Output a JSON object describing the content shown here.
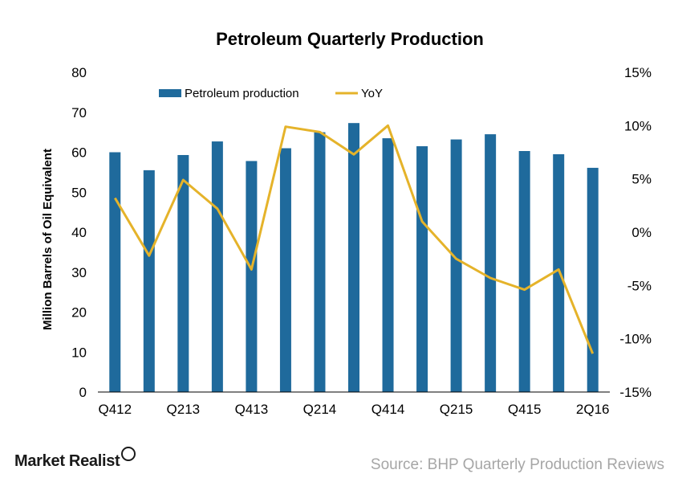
{
  "chart_data": {
    "type": "bar+line",
    "title": "Petroleum Quarterly Production",
    "ylabel": "Million Barrels of Oil Equivalent",
    "ylim": [
      0,
      80
    ],
    "y_ticks": [
      "0",
      "10",
      "20",
      "30",
      "40",
      "50",
      "60",
      "70",
      "80"
    ],
    "y2lim": [
      -15,
      15
    ],
    "y2_ticks": [
      "-15%",
      "-10%",
      "-5%",
      "0%",
      "5%",
      "10%",
      "15%"
    ],
    "x_tick_labels": [
      "Q412",
      "Q213",
      "Q413",
      "Q214",
      "Q414",
      "Q215",
      "Q415",
      "2Q16"
    ],
    "legend_position": "top",
    "grid": false,
    "series": [
      {
        "name": "Petroleum production",
        "kind": "bar",
        "axis": "left",
        "color": "#1f6a9c",
        "values": [
          60,
          55.5,
          59.3,
          62.7,
          57.8,
          61,
          65,
          67.3,
          63.5,
          61.5,
          63.2,
          64.5,
          60.3,
          59.5,
          56.1
        ]
      },
      {
        "name": "YoY",
        "kind": "line",
        "axis": "right",
        "color": "#e5b32a",
        "values": [
          3.2,
          -2.2,
          4.9,
          2.2,
          -3.5,
          9.9,
          9.4,
          7.3,
          10.0,
          1.0,
          -2.5,
          -4.3,
          -5.4,
          -3.5,
          -11.4
        ]
      }
    ]
  },
  "footer": {
    "brand": "Market Realist",
    "source": "Source: BHP Quarterly Production Reviews"
  }
}
